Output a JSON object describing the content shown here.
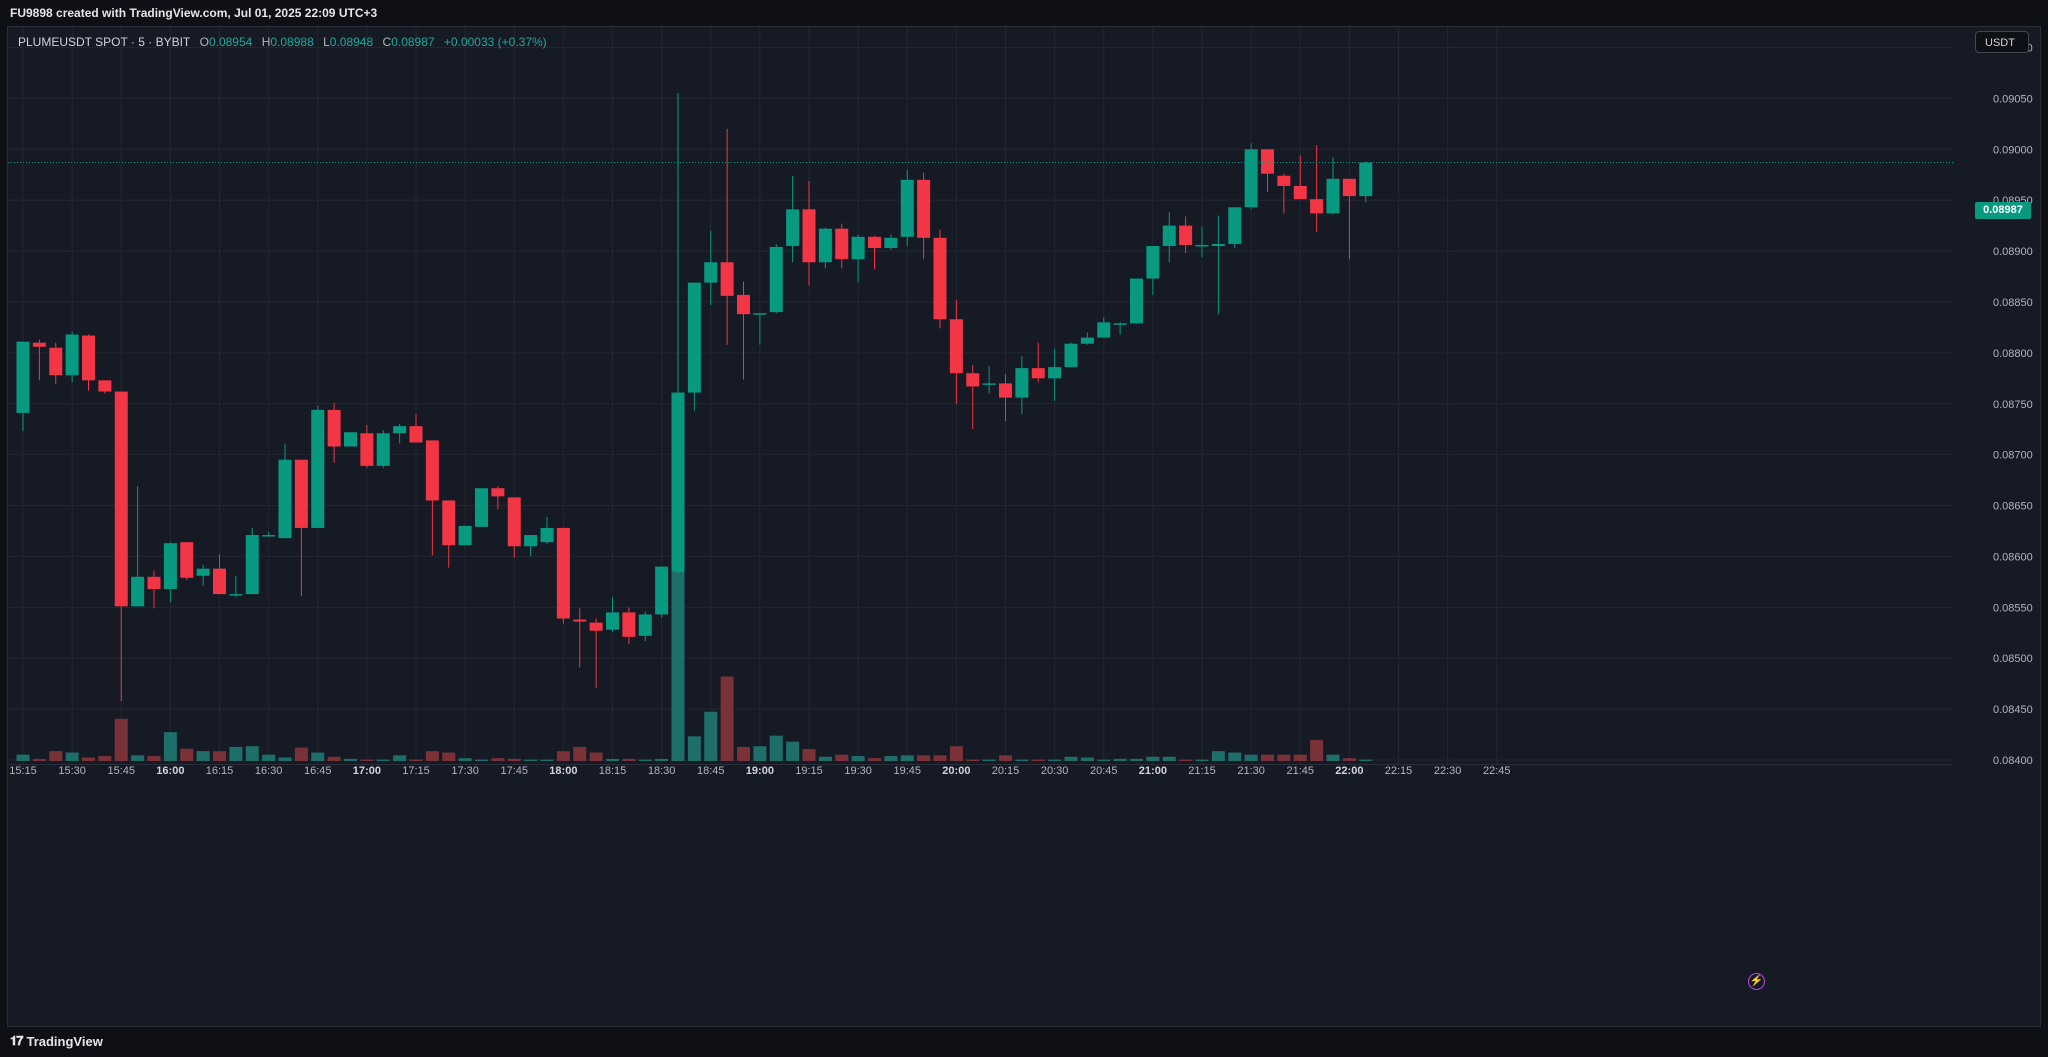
{
  "caption": "FU9898 created with TradingView.com, Jul 01, 2025 22:09 UTC+3",
  "legend": {
    "symbol": "PLUMEUSDT SPOT · 5 · BYBIT",
    "open_label": "O",
    "open": "0.08954",
    "high_label": "H",
    "high": "0.08988",
    "low_label": "L",
    "low": "0.08948",
    "close_label": "C",
    "close": "0.08987",
    "change": "+0.00033 (+0.37%)"
  },
  "currency_button": "USDT",
  "last_price_tag": "0.08987",
  "footer_brand": "TradingView",
  "icons": {
    "footer": "tradingview-logo-icon",
    "bolt": "lightning-icon"
  },
  "colors": {
    "up": "#089981",
    "down": "#f23645",
    "up_vol": "#1e6f6a",
    "down_vol": "#7a3137",
    "background": "#161a25",
    "grid": "#232734"
  },
  "chart_data": {
    "type": "candlestick",
    "symbol": "PLUMEUSDT",
    "interval_minutes": 5,
    "x_ticks": [
      {
        "label": "15:15",
        "bold": false
      },
      {
        "label": "15:30",
        "bold": false
      },
      {
        "label": "15:45",
        "bold": false
      },
      {
        "label": "16:00",
        "bold": true
      },
      {
        "label": "16:15",
        "bold": false
      },
      {
        "label": "16:30",
        "bold": false
      },
      {
        "label": "16:45",
        "bold": false
      },
      {
        "label": "17:00",
        "bold": true
      },
      {
        "label": "17:15",
        "bold": false
      },
      {
        "label": "17:30",
        "bold": false
      },
      {
        "label": "17:45",
        "bold": false
      },
      {
        "label": "18:00",
        "bold": true
      },
      {
        "label": "18:15",
        "bold": false
      },
      {
        "label": "18:30",
        "bold": false
      },
      {
        "label": "18:45",
        "bold": false
      },
      {
        "label": "19:00",
        "bold": true
      },
      {
        "label": "19:15",
        "bold": false
      },
      {
        "label": "19:30",
        "bold": false
      },
      {
        "label": "19:45",
        "bold": false
      },
      {
        "label": "20:00",
        "bold": true
      },
      {
        "label": "20:15",
        "bold": false
      },
      {
        "label": "20:30",
        "bold": false
      },
      {
        "label": "20:45",
        "bold": false
      },
      {
        "label": "21:00",
        "bold": true
      },
      {
        "label": "21:15",
        "bold": false
      },
      {
        "label": "21:30",
        "bold": false
      },
      {
        "label": "21:45",
        "bold": false
      },
      {
        "label": "22:00",
        "bold": true
      },
      {
        "label": "22:15",
        "bold": false
      },
      {
        "label": "22:30",
        "bold": false
      },
      {
        "label": "22:45",
        "bold": false
      }
    ],
    "y_ticks": [
      "0.09100",
      "0.09050",
      "0.09000",
      "0.08950",
      "0.08900",
      "0.08850",
      "0.08800",
      "0.08750",
      "0.08700",
      "0.08650",
      "0.08600",
      "0.08550",
      "0.08500",
      "0.08450",
      "0.08400"
    ],
    "y_range": [
      0.084,
      0.091
    ],
    "last_price": 0.08987,
    "candles": [
      {
        "t": "15:15",
        "o": 0.08741,
        "h": 0.08811,
        "l": 0.08723,
        "c": 0.08811,
        "v": 18
      },
      {
        "t": "15:20",
        "o": 0.0881,
        "h": 0.08813,
        "l": 0.08773,
        "c": 0.08806,
        "v": 6
      },
      {
        "t": "15:25",
        "o": 0.08805,
        "h": 0.0881,
        "l": 0.08769,
        "c": 0.08778,
        "v": 28
      },
      {
        "t": "15:30",
        "o": 0.08778,
        "h": 0.08821,
        "l": 0.08771,
        "c": 0.08818,
        "v": 24
      },
      {
        "t": "15:35",
        "o": 0.08817,
        "h": 0.08818,
        "l": 0.08763,
        "c": 0.08773,
        "v": 10
      },
      {
        "t": "15:40",
        "o": 0.08773,
        "h": 0.08773,
        "l": 0.0876,
        "c": 0.08762,
        "v": 14
      },
      {
        "t": "15:45",
        "o": 0.08762,
        "h": 0.08762,
        "l": 0.08458,
        "c": 0.08551,
        "v": 120
      },
      {
        "t": "15:50",
        "o": 0.08551,
        "h": 0.08669,
        "l": 0.08551,
        "c": 0.0858,
        "v": 16
      },
      {
        "t": "15:55",
        "o": 0.0858,
        "h": 0.08586,
        "l": 0.08549,
        "c": 0.08568,
        "v": 14
      },
      {
        "t": "16:00",
        "o": 0.08568,
        "h": 0.08614,
        "l": 0.08555,
        "c": 0.08613,
        "v": 82
      },
      {
        "t": "16:05",
        "o": 0.08614,
        "h": 0.08614,
        "l": 0.08577,
        "c": 0.08579,
        "v": 35
      },
      {
        "t": "16:10",
        "o": 0.08581,
        "h": 0.08592,
        "l": 0.08571,
        "c": 0.08588,
        "v": 28
      },
      {
        "t": "16:15",
        "o": 0.08588,
        "h": 0.08602,
        "l": 0.08563,
        "c": 0.08563,
        "v": 28
      },
      {
        "t": "16:20",
        "o": 0.08562,
        "h": 0.08581,
        "l": 0.0856,
        "c": 0.08563,
        "v": 40
      },
      {
        "t": "16:25",
        "o": 0.08563,
        "h": 0.08628,
        "l": 0.08563,
        "c": 0.08621,
        "v": 42
      },
      {
        "t": "16:30",
        "o": 0.08621,
        "h": 0.08624,
        "l": 0.0862,
        "c": 0.08621,
        "v": 18
      },
      {
        "t": "16:35",
        "o": 0.08618,
        "h": 0.08711,
        "l": 0.08618,
        "c": 0.08695,
        "v": 10
      },
      {
        "t": "16:40",
        "o": 0.08695,
        "h": 0.08695,
        "l": 0.08561,
        "c": 0.08628,
        "v": 38
      },
      {
        "t": "16:45",
        "o": 0.08628,
        "h": 0.08748,
        "l": 0.08628,
        "c": 0.08744,
        "v": 24
      },
      {
        "t": "16:50",
        "o": 0.08744,
        "h": 0.08751,
        "l": 0.08692,
        "c": 0.08708,
        "v": 12
      },
      {
        "t": "16:55",
        "o": 0.08708,
        "h": 0.08722,
        "l": 0.08708,
        "c": 0.08722,
        "v": 6
      },
      {
        "t": "17:00",
        "o": 0.08721,
        "h": 0.08729,
        "l": 0.08687,
        "c": 0.08689,
        "v": 4
      },
      {
        "t": "17:05",
        "o": 0.08689,
        "h": 0.08724,
        "l": 0.08687,
        "c": 0.08721,
        "v": 4
      },
      {
        "t": "17:10",
        "o": 0.08721,
        "h": 0.0873,
        "l": 0.08711,
        "c": 0.08728,
        "v": 16
      },
      {
        "t": "17:15",
        "o": 0.08728,
        "h": 0.0874,
        "l": 0.08712,
        "c": 0.08712,
        "v": 4
      },
      {
        "t": "17:20",
        "o": 0.08714,
        "h": 0.08714,
        "l": 0.08601,
        "c": 0.08655,
        "v": 28
      },
      {
        "t": "17:25",
        "o": 0.08655,
        "h": 0.08655,
        "l": 0.08589,
        "c": 0.08611,
        "v": 24
      },
      {
        "t": "17:30",
        "o": 0.08611,
        "h": 0.0863,
        "l": 0.08611,
        "c": 0.0863,
        "v": 8
      },
      {
        "t": "17:35",
        "o": 0.08629,
        "h": 0.08667,
        "l": 0.0863,
        "c": 0.08667,
        "v": 4
      },
      {
        "t": "17:40",
        "o": 0.08667,
        "h": 0.08669,
        "l": 0.08646,
        "c": 0.08659,
        "v": 8
      },
      {
        "t": "17:45",
        "o": 0.08658,
        "h": 0.08658,
        "l": 0.08599,
        "c": 0.0861,
        "v": 6
      },
      {
        "t": "17:50",
        "o": 0.0861,
        "h": 0.08621,
        "l": 0.086,
        "c": 0.08621,
        "v": 4
      },
      {
        "t": "17:55",
        "o": 0.08614,
        "h": 0.08639,
        "l": 0.08612,
        "c": 0.08628,
        "v": 4
      },
      {
        "t": "18:00",
        "o": 0.08628,
        "h": 0.08628,
        "l": 0.08534,
        "c": 0.08539,
        "v": 28
      },
      {
        "t": "18:05",
        "o": 0.08538,
        "h": 0.08549,
        "l": 0.08491,
        "c": 0.08536,
        "v": 40
      },
      {
        "t": "18:10",
        "o": 0.08535,
        "h": 0.08539,
        "l": 0.08471,
        "c": 0.08527,
        "v": 24
      },
      {
        "t": "18:15",
        "o": 0.08528,
        "h": 0.0856,
        "l": 0.08526,
        "c": 0.08545,
        "v": 6
      },
      {
        "t": "18:20",
        "o": 0.08545,
        "h": 0.0855,
        "l": 0.08514,
        "c": 0.08521,
        "v": 6
      },
      {
        "t": "18:25",
        "o": 0.08522,
        "h": 0.08546,
        "l": 0.08517,
        "c": 0.08543,
        "v": 4
      },
      {
        "t": "18:30",
        "o": 0.08543,
        "h": 0.0859,
        "l": 0.0854,
        "c": 0.0859,
        "v": 6
      },
      {
        "t": "18:35",
        "o": 0.08585,
        "h": 0.09055,
        "l": 0.08583,
        "c": 0.08761,
        "v": 540
      },
      {
        "t": "18:40",
        "o": 0.08761,
        "h": 0.08869,
        "l": 0.08743,
        "c": 0.08869,
        "v": 70
      },
      {
        "t": "18:45",
        "o": 0.08869,
        "h": 0.0892,
        "l": 0.08847,
        "c": 0.08889,
        "v": 140
      },
      {
        "t": "18:50",
        "o": 0.08889,
        "h": 0.0902,
        "l": 0.08808,
        "c": 0.08856,
        "v": 240
      },
      {
        "t": "18:55",
        "o": 0.08857,
        "h": 0.0887,
        "l": 0.08774,
        "c": 0.08838,
        "v": 40
      },
      {
        "t": "19:00",
        "o": 0.08838,
        "h": 0.08839,
        "l": 0.08808,
        "c": 0.08839,
        "v": 42
      },
      {
        "t": "19:05",
        "o": 0.0884,
        "h": 0.08907,
        "l": 0.08839,
        "c": 0.08904,
        "v": 72
      },
      {
        "t": "19:10",
        "o": 0.08905,
        "h": 0.08974,
        "l": 0.08889,
        "c": 0.08941,
        "v": 55
      },
      {
        "t": "19:15",
        "o": 0.08941,
        "h": 0.08969,
        "l": 0.08866,
        "c": 0.08889,
        "v": 34
      },
      {
        "t": "19:20",
        "o": 0.08889,
        "h": 0.08923,
        "l": 0.08883,
        "c": 0.08922,
        "v": 12
      },
      {
        "t": "19:25",
        "o": 0.08922,
        "h": 0.08927,
        "l": 0.08883,
        "c": 0.08892,
        "v": 18
      },
      {
        "t": "19:30",
        "o": 0.08892,
        "h": 0.08916,
        "l": 0.08869,
        "c": 0.08914,
        "v": 14
      },
      {
        "t": "19:35",
        "o": 0.08914,
        "h": 0.08915,
        "l": 0.08882,
        "c": 0.08903,
        "v": 8
      },
      {
        "t": "19:40",
        "o": 0.08903,
        "h": 0.08916,
        "l": 0.08901,
        "c": 0.08913,
        "v": 14
      },
      {
        "t": "19:45",
        "o": 0.08914,
        "h": 0.0898,
        "l": 0.08905,
        "c": 0.0897,
        "v": 16
      },
      {
        "t": "19:50",
        "o": 0.0897,
        "h": 0.08977,
        "l": 0.08892,
        "c": 0.08913,
        "v": 16
      },
      {
        "t": "19:55",
        "o": 0.08913,
        "h": 0.08921,
        "l": 0.08824,
        "c": 0.08833,
        "v": 16
      },
      {
        "t": "20:00",
        "o": 0.08833,
        "h": 0.08852,
        "l": 0.0875,
        "c": 0.0878,
        "v": 42
      },
      {
        "t": "20:05",
        "o": 0.0878,
        "h": 0.08788,
        "l": 0.08725,
        "c": 0.08767,
        "v": 4
      },
      {
        "t": "20:10",
        "o": 0.0877,
        "h": 0.08787,
        "l": 0.0876,
        "c": 0.0877,
        "v": 4
      },
      {
        "t": "20:15",
        "o": 0.0877,
        "h": 0.08779,
        "l": 0.08733,
        "c": 0.08756,
        "v": 16
      },
      {
        "t": "20:20",
        "o": 0.08756,
        "h": 0.08797,
        "l": 0.0874,
        "c": 0.08785,
        "v": 4
      },
      {
        "t": "20:25",
        "o": 0.08785,
        "h": 0.0881,
        "l": 0.08771,
        "c": 0.08775,
        "v": 4
      },
      {
        "t": "20:30",
        "o": 0.08775,
        "h": 0.08804,
        "l": 0.08753,
        "c": 0.08786,
        "v": 4
      },
      {
        "t": "20:35",
        "o": 0.08786,
        "h": 0.0881,
        "l": 0.08786,
        "c": 0.08809,
        "v": 12
      },
      {
        "t": "20:40",
        "o": 0.08809,
        "h": 0.0882,
        "l": 0.08808,
        "c": 0.08815,
        "v": 10
      },
      {
        "t": "20:45",
        "o": 0.08815,
        "h": 0.08835,
        "l": 0.08815,
        "c": 0.0883,
        "v": 4
      },
      {
        "t": "20:50",
        "o": 0.08829,
        "h": 0.0883,
        "l": 0.08818,
        "c": 0.08829,
        "v": 6
      },
      {
        "t": "20:55",
        "o": 0.08829,
        "h": 0.08873,
        "l": 0.08829,
        "c": 0.08873,
        "v": 6
      },
      {
        "t": "21:00",
        "o": 0.08873,
        "h": 0.08905,
        "l": 0.08857,
        "c": 0.08905,
        "v": 12
      },
      {
        "t": "21:05",
        "o": 0.08905,
        "h": 0.08938,
        "l": 0.08889,
        "c": 0.08925,
        "v": 12
      },
      {
        "t": "21:10",
        "o": 0.08925,
        "h": 0.08934,
        "l": 0.08898,
        "c": 0.08906,
        "v": 4
      },
      {
        "t": "21:15",
        "o": 0.08906,
        "h": 0.08924,
        "l": 0.08894,
        "c": 0.08906,
        "v": 4
      },
      {
        "t": "21:20",
        "o": 0.08905,
        "h": 0.08935,
        "l": 0.08838,
        "c": 0.08907,
        "v": 28
      },
      {
        "t": "21:25",
        "o": 0.08907,
        "h": 0.08943,
        "l": 0.08903,
        "c": 0.08943,
        "v": 24
      },
      {
        "t": "21:30",
        "o": 0.08943,
        "h": 0.09006,
        "l": 0.08941,
        "c": 0.09,
        "v": 18
      },
      {
        "t": "21:35",
        "o": 0.09,
        "h": 0.09,
        "l": 0.08958,
        "c": 0.08976,
        "v": 18
      },
      {
        "t": "21:40",
        "o": 0.08974,
        "h": 0.08976,
        "l": 0.08937,
        "c": 0.08964,
        "v": 18
      },
      {
        "t": "21:45",
        "o": 0.08964,
        "h": 0.08994,
        "l": 0.08951,
        "c": 0.08951,
        "v": 18
      },
      {
        "t": "21:50",
        "o": 0.08951,
        "h": 0.09004,
        "l": 0.08919,
        "c": 0.08937,
        "v": 60
      },
      {
        "t": "21:55",
        "o": 0.08937,
        "h": 0.08992,
        "l": 0.08936,
        "c": 0.08971,
        "v": 18
      },
      {
        "t": "22:00",
        "o": 0.08971,
        "h": 0.08971,
        "l": 0.08892,
        "c": 0.08954,
        "v": 8
      },
      {
        "t": "22:05",
        "o": 0.08954,
        "h": 0.08988,
        "l": 0.08948,
        "c": 0.08987,
        "v": 4
      }
    ]
  }
}
